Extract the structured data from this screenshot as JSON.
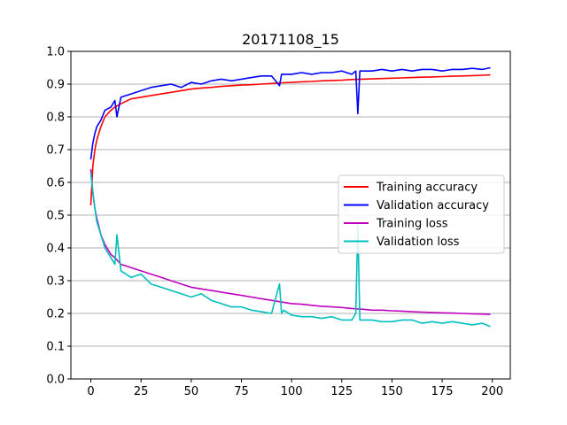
{
  "chart_data": {
    "type": "line",
    "title": "20171108_15",
    "xlabel": "",
    "ylabel": "",
    "xlim": [
      -9.95,
      208.95
    ],
    "ylim": [
      0.0,
      1.0
    ],
    "x_ticks": [
      0,
      25,
      50,
      75,
      100,
      125,
      150,
      175,
      200
    ],
    "y_ticks": [
      0.0,
      0.1,
      0.2,
      0.3,
      0.4,
      0.5,
      0.6,
      0.7,
      0.8,
      0.9,
      1.0
    ],
    "y_tick_labels": [
      "0.0",
      "0.1",
      "0.2",
      "0.3",
      "0.4",
      "0.5",
      "0.6",
      "0.7",
      "0.8",
      "0.9",
      "1.0"
    ],
    "grid": "horizontal",
    "legend_position": "center-right",
    "series": [
      {
        "name": "Training accuracy",
        "color": "#ff0000",
        "x": [
          0,
          1,
          2,
          3,
          5,
          7,
          10,
          12,
          15,
          20,
          25,
          30,
          35,
          40,
          45,
          50,
          55,
          60,
          65,
          70,
          75,
          80,
          85,
          90,
          95,
          100,
          105,
          110,
          115,
          120,
          125,
          130,
          135,
          140,
          145,
          150,
          155,
          160,
          165,
          170,
          175,
          180,
          185,
          190,
          195,
          199
        ],
        "y": [
          0.53,
          0.65,
          0.7,
          0.73,
          0.77,
          0.8,
          0.82,
          0.83,
          0.84,
          0.855,
          0.86,
          0.865,
          0.87,
          0.875,
          0.88,
          0.885,
          0.888,
          0.89,
          0.893,
          0.895,
          0.897,
          0.898,
          0.9,
          0.902,
          0.904,
          0.905,
          0.907,
          0.908,
          0.91,
          0.911,
          0.912,
          0.914,
          0.915,
          0.916,
          0.917,
          0.918,
          0.919,
          0.92,
          0.921,
          0.922,
          0.923,
          0.924,
          0.925,
          0.926,
          0.927,
          0.928
        ]
      },
      {
        "name": "Validation accuracy",
        "color": "#0000ff",
        "x": [
          0,
          1,
          2,
          3,
          5,
          7,
          10,
          12,
          13,
          15,
          20,
          25,
          30,
          35,
          40,
          45,
          50,
          55,
          60,
          65,
          70,
          75,
          80,
          85,
          90,
          94,
          95,
          100,
          105,
          110,
          115,
          120,
          125,
          130,
          132,
          133,
          134,
          135,
          140,
          145,
          150,
          155,
          160,
          165,
          170,
          175,
          180,
          185,
          190,
          195,
          199
        ],
        "y": [
          0.67,
          0.72,
          0.75,
          0.77,
          0.79,
          0.82,
          0.83,
          0.85,
          0.8,
          0.86,
          0.87,
          0.88,
          0.89,
          0.895,
          0.9,
          0.89,
          0.905,
          0.9,
          0.91,
          0.915,
          0.91,
          0.915,
          0.92,
          0.925,
          0.925,
          0.895,
          0.93,
          0.93,
          0.935,
          0.93,
          0.935,
          0.935,
          0.94,
          0.93,
          0.94,
          0.81,
          0.94,
          0.94,
          0.94,
          0.945,
          0.94,
          0.945,
          0.94,
          0.945,
          0.945,
          0.94,
          0.945,
          0.945,
          0.948,
          0.945,
          0.95
        ]
      },
      {
        "name": "Training loss",
        "color": "#bf00bf",
        "x": [
          0,
          1,
          2,
          3,
          5,
          7,
          10,
          12,
          15,
          20,
          25,
          30,
          35,
          40,
          45,
          50,
          55,
          60,
          65,
          70,
          75,
          80,
          85,
          90,
          95,
          100,
          105,
          110,
          115,
          120,
          125,
          130,
          135,
          140,
          145,
          150,
          155,
          160,
          165,
          170,
          175,
          180,
          185,
          190,
          195,
          199
        ],
        "y": [
          0.64,
          0.57,
          0.52,
          0.49,
          0.44,
          0.41,
          0.38,
          0.37,
          0.35,
          0.34,
          0.33,
          0.32,
          0.31,
          0.3,
          0.29,
          0.28,
          0.275,
          0.27,
          0.265,
          0.26,
          0.255,
          0.25,
          0.245,
          0.24,
          0.235,
          0.23,
          0.228,
          0.225,
          0.222,
          0.22,
          0.218,
          0.215,
          0.213,
          0.21,
          0.21,
          0.208,
          0.207,
          0.205,
          0.204,
          0.203,
          0.202,
          0.201,
          0.2,
          0.199,
          0.198,
          0.197
        ]
      },
      {
        "name": "Validation loss",
        "color": "#00bfbf",
        "x": [
          0,
          1,
          2,
          3,
          5,
          7,
          10,
          12,
          13,
          15,
          20,
          25,
          30,
          35,
          40,
          45,
          50,
          55,
          60,
          65,
          70,
          75,
          80,
          85,
          90,
          94,
          95,
          96,
          100,
          105,
          110,
          115,
          120,
          125,
          130,
          132,
          133,
          134,
          135,
          140,
          145,
          150,
          155,
          160,
          165,
          170,
          175,
          180,
          185,
          190,
          195,
          199
        ],
        "y": [
          0.63,
          0.57,
          0.52,
          0.48,
          0.44,
          0.4,
          0.37,
          0.35,
          0.44,
          0.33,
          0.31,
          0.32,
          0.29,
          0.28,
          0.27,
          0.26,
          0.25,
          0.26,
          0.24,
          0.23,
          0.22,
          0.22,
          0.21,
          0.205,
          0.2,
          0.29,
          0.2,
          0.21,
          0.195,
          0.19,
          0.19,
          0.185,
          0.19,
          0.18,
          0.18,
          0.2,
          0.47,
          0.18,
          0.18,
          0.18,
          0.175,
          0.175,
          0.18,
          0.18,
          0.17,
          0.175,
          0.17,
          0.175,
          0.17,
          0.165,
          0.17,
          0.16
        ]
      }
    ]
  }
}
